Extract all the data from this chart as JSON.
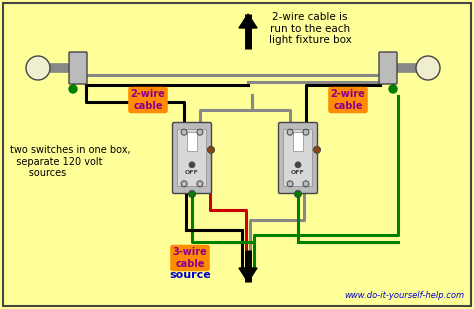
{
  "bg_color": "#FFFF99",
  "title_text": "2-wire cable is\nrun to the each\nlight fixture box",
  "left_label": "two switches in one box,\n  separate 120 volt\n      sources",
  "label_2wire_left": "2-wire\ncable",
  "label_2wire_right": "2-wire\ncable",
  "label_3wire": "3-wire\ncable",
  "label_source": "source",
  "website": "www.do-it-yourself-help.com",
  "orange_box_color": "#FF8C00",
  "website_color": "#0000CC",
  "colors": {
    "black": "#000000",
    "white": "#FFFFFF",
    "red": "#CC0000",
    "green": "#008000",
    "gray": "#888888",
    "silver": "#BBBBBB",
    "dark_gray": "#444444",
    "orange": "#FF8C00",
    "light_gray": "#D8D8D8",
    "brown": "#8B4513",
    "bg": "#FFFF99"
  }
}
